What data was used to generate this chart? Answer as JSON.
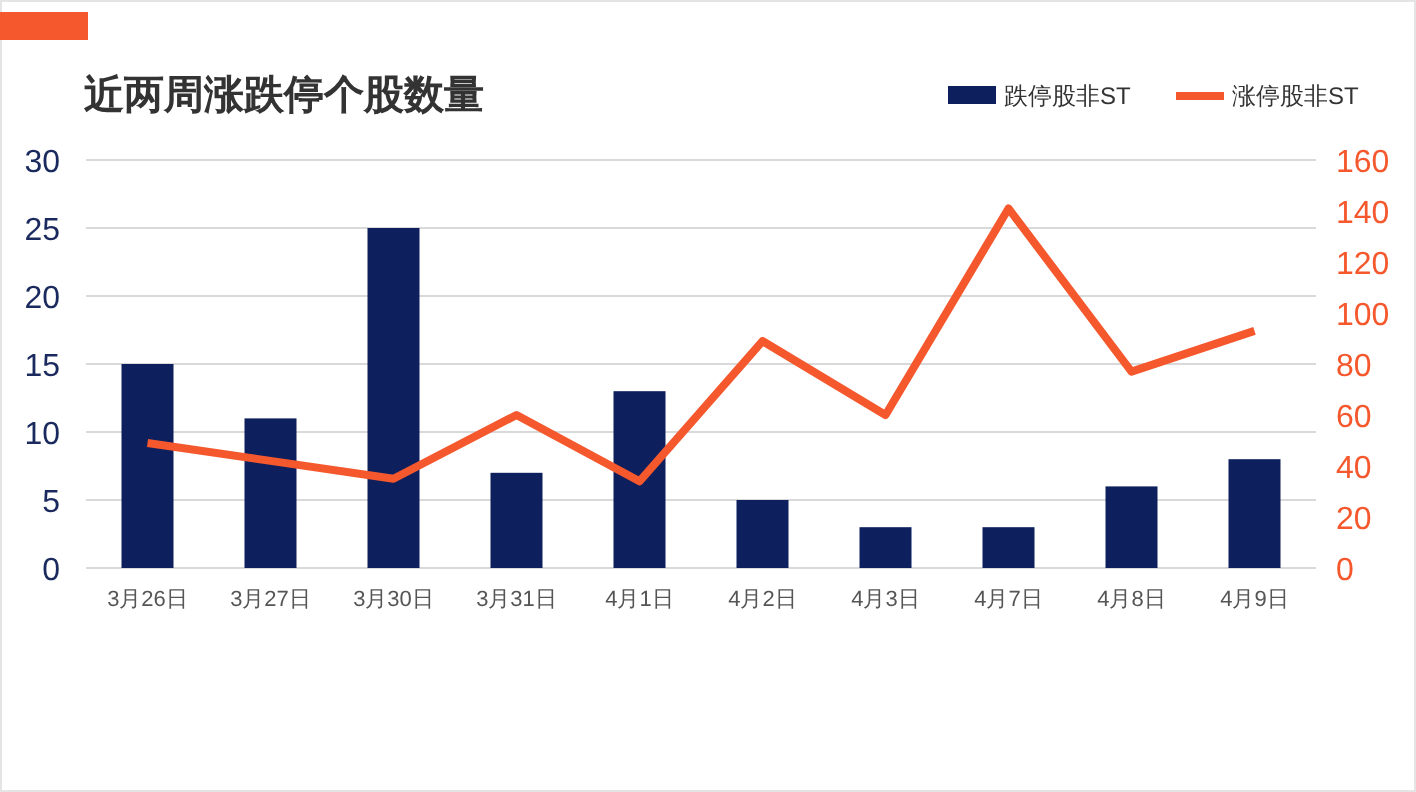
{
  "chart_data": {
    "type": "bar",
    "title": "近两周涨跌停个股数量",
    "categories": [
      "3月26日",
      "3月27日",
      "3月30日",
      "3月31日",
      "4月1日",
      "4月2日",
      "4月3日",
      "4月7日",
      "4月8日",
      "4月9日"
    ],
    "series": [
      {
        "name": "跌停股非ST",
        "color": "#0d1f5c",
        "values": [
          15,
          11,
          25,
          7,
          13,
          5,
          3,
          3,
          6,
          8
        ]
      },
      {
        "name": "涨停股非ST",
        "type": "line",
        "axis": "y2",
        "color": "#f5582d",
        "values": [
          49,
          42,
          35,
          60,
          34,
          89,
          60,
          141,
          77,
          93
        ]
      }
    ],
    "ylim": [
      0,
      30
    ],
    "yticks": [
      0,
      5,
      10,
      15,
      20,
      25,
      30
    ],
    "y2lim": [
      0,
      160
    ],
    "y2ticks": [
      0,
      20,
      40,
      60,
      80,
      100,
      120,
      140,
      160
    ],
    "grid": "y",
    "legend": "top right"
  }
}
